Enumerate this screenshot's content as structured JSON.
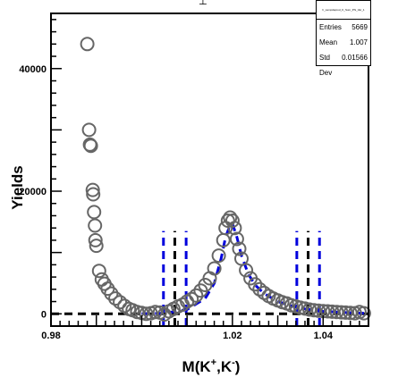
{
  "chart_data": {
    "type": "scatter",
    "title": "",
    "xlabel": "M(K⁺,K⁻)",
    "ylabel": "Yields",
    "xlim": [
      0.98,
      1.05
    ],
    "ylim": [
      -2000,
      49000
    ],
    "x_ticks": [
      "0.98",
      "1.02",
      "1.04"
    ],
    "y_ticks": [
      "0",
      "20000",
      "40000"
    ],
    "grid": false,
    "series": [
      {
        "marker": "open-circle",
        "color": "#666666",
        "points": [
          [
            0.988,
            44000
          ],
          [
            0.9884,
            30000
          ],
          [
            0.9886,
            27600
          ],
          [
            0.9888,
            27400
          ],
          [
            0.9892,
            20200
          ],
          [
            0.9893,
            19500
          ],
          [
            0.9895,
            16600
          ],
          [
            0.9897,
            14400
          ],
          [
            0.9898,
            12000
          ],
          [
            0.99,
            11100
          ],
          [
            0.9906,
            7000
          ],
          [
            0.9912,
            5600
          ],
          [
            0.9918,
            4900
          ],
          [
            0.9925,
            4100
          ],
          [
            0.9933,
            3300
          ],
          [
            0.9942,
            2500
          ],
          [
            0.9952,
            1900
          ],
          [
            0.9962,
            1300
          ],
          [
            0.9972,
            800
          ],
          [
            0.998,
            600
          ],
          [
            0.999,
            300
          ],
          [
            1.0,
            150
          ],
          [
            1.001,
            0
          ],
          [
            1.002,
            100
          ],
          [
            1.003,
            300
          ],
          [
            1.004,
            200
          ],
          [
            1.005,
            -100
          ],
          [
            1.006,
            400
          ],
          [
            1.007,
            800
          ],
          [
            1.008,
            1200
          ],
          [
            1.009,
            1500
          ],
          [
            1.01,
            2000
          ],
          [
            1.011,
            2400
          ],
          [
            1.012,
            3000
          ],
          [
            1.013,
            3800
          ],
          [
            1.014,
            4700
          ],
          [
            1.015,
            5800
          ],
          [
            1.016,
            7400
          ],
          [
            1.017,
            9500
          ],
          [
            1.018,
            12000
          ],
          [
            1.0185,
            14000
          ],
          [
            1.019,
            15200
          ],
          [
            1.0195,
            15700
          ],
          [
            1.02,
            15200
          ],
          [
            1.0205,
            14000
          ],
          [
            1.021,
            12200
          ],
          [
            1.0215,
            10600
          ],
          [
            1.022,
            9000
          ],
          [
            1.023,
            7100
          ],
          [
            1.024,
            5800
          ],
          [
            1.025,
            4800
          ],
          [
            1.026,
            4000
          ],
          [
            1.027,
            3400
          ],
          [
            1.028,
            2900
          ],
          [
            1.029,
            2500
          ],
          [
            1.03,
            2200
          ],
          [
            1.031,
            1900
          ],
          [
            1.032,
            1700
          ],
          [
            1.033,
            1400
          ],
          [
            1.034,
            1200
          ],
          [
            1.035,
            1000
          ],
          [
            1.036,
            850
          ],
          [
            1.037,
            700
          ],
          [
            1.038,
            600
          ],
          [
            1.039,
            500
          ],
          [
            1.04,
            450
          ],
          [
            1.041,
            400
          ],
          [
            1.042,
            350
          ],
          [
            1.043,
            300
          ],
          [
            1.044,
            250
          ],
          [
            1.045,
            200
          ],
          [
            1.046,
            150
          ],
          [
            1.047,
            100
          ],
          [
            1.048,
            300
          ],
          [
            1.049,
            100
          ]
        ]
      },
      {
        "name": "",
        "type": "line",
        "style": "dashed",
        "color": "#0000dd",
        "points": [
          [
            1.0,
            0
          ],
          [
            1.005,
            100
          ],
          [
            1.01,
            700
          ],
          [
            1.014,
            2500
          ],
          [
            1.016,
            5000
          ],
          [
            1.0175,
            9000
          ],
          [
            1.0185,
            12500
          ],
          [
            1.0195,
            14500
          ],
          [
            1.02,
            14700
          ],
          [
            1.021,
            12500
          ],
          [
            1.022,
            9500
          ],
          [
            1.0235,
            6500
          ],
          [
            1.025,
            4700
          ],
          [
            1.027,
            3300
          ],
          [
            1.03,
            2000
          ],
          [
            1.033,
            1300
          ],
          [
            1.036,
            800
          ],
          [
            1.04,
            400
          ],
          [
            1.045,
            200
          ],
          [
            1.049,
            100
          ]
        ]
      }
    ],
    "reference_lines": [
      {
        "orientation": "horizontal",
        "y": 0,
        "x_range": [
          0.98,
          1.05
        ],
        "style": "dashed",
        "color": "#000000"
      },
      {
        "orientation": "vertical",
        "x": 1.0048,
        "y_range": [
          -2000,
          13500
        ],
        "style": "dashed",
        "color": "#0000dd"
      },
      {
        "orientation": "vertical",
        "x": 1.0073,
        "y_range": [
          -2000,
          13500
        ],
        "style": "dashed",
        "color": "#000000"
      },
      {
        "orientation": "vertical",
        "x": 1.0098,
        "y_range": [
          -2000,
          13500
        ],
        "style": "dashed",
        "color": "#0000dd"
      },
      {
        "orientation": "vertical",
        "x": 1.0342,
        "y_range": [
          -2000,
          13500
        ],
        "style": "dashed",
        "color": "#0000dd"
      },
      {
        "orientation": "vertical",
        "x": 1.0367,
        "y_range": [
          -2000,
          13500
        ],
        "style": "dashed",
        "color": "#000000"
      },
      {
        "orientation": "vertical",
        "x": 1.0392,
        "y_range": [
          -2000,
          13500
        ],
        "style": "dashed",
        "color": "#0000dd"
      }
    ]
  },
  "stats": {
    "title": "h_Lampdaprod_K_Sum_Phi_Var_1",
    "rows": [
      {
        "label": "Entries",
        "value": "5669"
      },
      {
        "label": "Mean",
        "value": "1.007"
      },
      {
        "label": "Std Dev",
        "value": "0.01566"
      }
    ]
  },
  "top_mark": "┴"
}
